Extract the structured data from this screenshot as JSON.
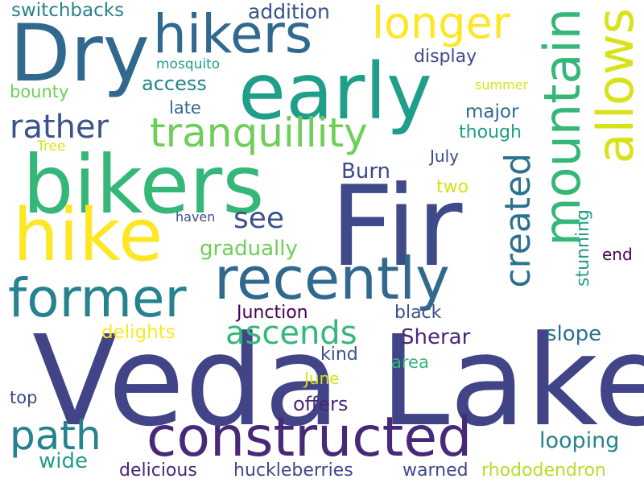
{
  "palette": {
    "dark_purple": "#440154",
    "indigo": "#3e4a89",
    "blue": "#31688e",
    "teal": "#26828e",
    "green_teal": "#1f9e89",
    "green": "#35b779",
    "light_green": "#6ece58",
    "lime": "#b5de2b",
    "yellow": "#fde725"
  },
  "words": {
    "veda_lake": "Veda Lake",
    "fir": "Fir",
    "bikers": "bikers",
    "dry": "Dry",
    "early": "early",
    "hike": "hike",
    "recently": "recently",
    "hikers": "hikers",
    "constructed": "constructed",
    "former": "former",
    "mountain": "mountain",
    "allows": "allows",
    "longer": "longer",
    "tranquillity": "tranquillity",
    "path": "path",
    "rather": "rather",
    "created": "created",
    "ascends": "ascends",
    "see": "see",
    "switchbacks": "switchbacks",
    "addition": "addition",
    "display": "display",
    "mosquito": "mosquito",
    "summer": "summer",
    "access": "access",
    "bounty": "bounty",
    "late": "late",
    "major": "major",
    "though": "though",
    "tree": "Tree",
    "july": "July",
    "burn": "Burn",
    "two": "two",
    "haven": "haven",
    "gradually": "gradually",
    "end": "end",
    "stunning": "stunning",
    "junction": "Junction",
    "black": "black",
    "delights": "delights",
    "sherar": "Sherar",
    "slope": "slope",
    "kind": "kind",
    "area": "area",
    "june": "June",
    "top": "top",
    "offers": "offers",
    "looping": "looping",
    "wide": "wide",
    "delicious": "delicious",
    "huckleberries": "huckleberries",
    "warned": "warned",
    "rhododendron": "rhododendron"
  }
}
